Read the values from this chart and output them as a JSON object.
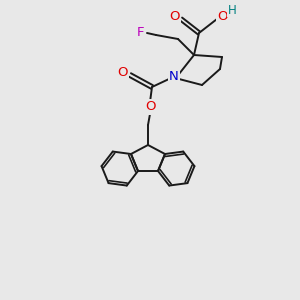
{
  "background_color": "#e8e8e8",
  "bond_color": "#1a1a1a",
  "atom_colors": {
    "O": "#e00000",
    "N": "#0000cc",
    "F": "#bb00bb",
    "H": "#008080",
    "C": "#1a1a1a"
  },
  "figsize": [
    3.0,
    3.0
  ],
  "dpi": 100,
  "lw": 1.4
}
